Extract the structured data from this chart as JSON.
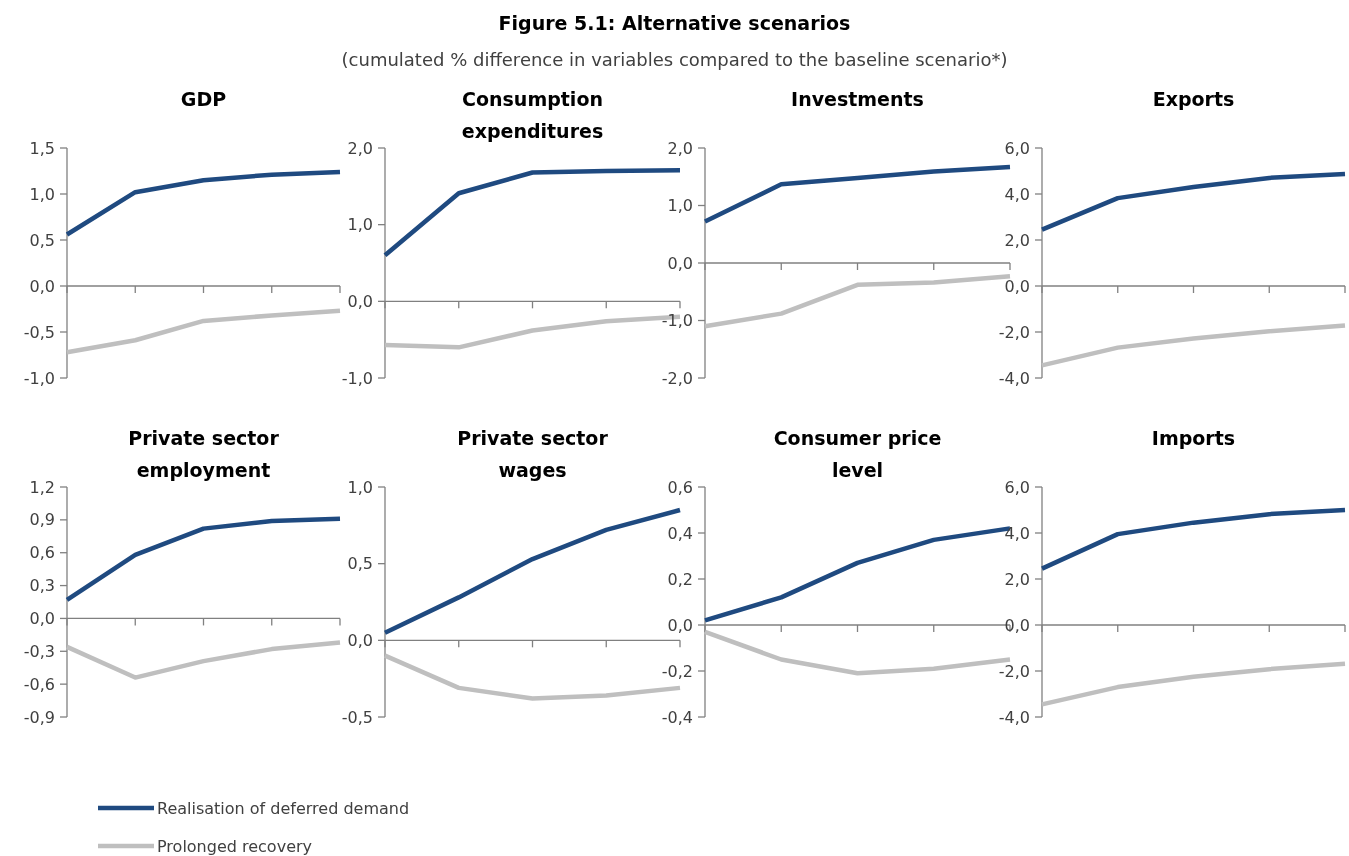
{
  "chart_data": [
    {
      "type": "line",
      "title": "GDP",
      "annotations": [
        "Figure 5.1: Alternative scenarios",
        "(cumulated % difference in variables compared to the baseline scenario*)"
      ],
      "legend": "bottom",
      "categories": [
        null,
        null,
        null,
        null,
        null
      ],
      "ylim": [
        -1,
        1.5
      ],
      "yticks": [
        {
          "value": -1,
          "label": "-1,0"
        },
        {
          "value": -0.5,
          "label": "-0,5"
        },
        {
          "value": 0,
          "label": "0,0"
        },
        {
          "value": 0.5,
          "label": "0,5"
        },
        {
          "value": 1,
          "label": "1,0"
        },
        {
          "value": 1.5,
          "label": "1,5"
        }
      ],
      "series": [
        {
          "name": "Realisation of deferred demand",
          "color": "#1f4a80",
          "values": [
            0.56,
            1.02,
            1.15,
            1.21,
            1.24
          ]
        },
        {
          "name": "Prolonged recovery",
          "color": "#bfbfbf",
          "values": [
            -0.72,
            -0.59,
            -0.38,
            -0.32,
            -0.27
          ]
        }
      ]
    },
    {
      "type": "line",
      "title": "Consumption expenditures",
      "categories": [
        null,
        null,
        null,
        null,
        null
      ],
      "ylim": [
        -1,
        2
      ],
      "yticks": [
        {
          "value": -1,
          "label": "-1,0"
        },
        {
          "value": 0,
          "label": "0,0"
        },
        {
          "value": 1,
          "label": "1,0"
        },
        {
          "value": 2,
          "label": "2,0"
        }
      ],
      "series": [
        {
          "color": "#1f4a80",
          "values": [
            0.6,
            1.41,
            1.68,
            1.7,
            1.71
          ]
        },
        {
          "color": "#bfbfbf",
          "values": [
            -0.57,
            -0.6,
            -0.38,
            -0.26,
            -0.2
          ]
        }
      ]
    },
    {
      "type": "line",
      "title": "Investments",
      "categories": [
        null,
        null,
        null,
        null,
        null
      ],
      "ylim": [
        -2,
        2
      ],
      "yticks": [
        {
          "value": -2,
          "label": "-2,0"
        },
        {
          "value": -1,
          "label": "-1,0"
        },
        {
          "value": 0,
          "label": "0,0"
        },
        {
          "value": 1,
          "label": "1,0"
        },
        {
          "value": 2,
          "label": "2,0"
        }
      ],
      "series": [
        {
          "color": "#1f4a80",
          "values": [
            0.72,
            1.37,
            1.48,
            1.59,
            1.67
          ]
        },
        {
          "color": "#bfbfbf",
          "values": [
            -1.1,
            -0.88,
            -0.38,
            -0.34,
            -0.23
          ]
        }
      ]
    },
    {
      "type": "line",
      "title": "Exports",
      "categories": [
        null,
        null,
        null,
        null,
        null
      ],
      "ylim": [
        -4,
        6
      ],
      "yticks": [
        {
          "value": -4,
          "label": "-4,0"
        },
        {
          "value": -2,
          "label": "-2,0"
        },
        {
          "value": 0,
          "label": "0,0"
        },
        {
          "value": 2,
          "label": "2,0"
        },
        {
          "value": 4,
          "label": "4,0"
        },
        {
          "value": 6,
          "label": "6,0"
        }
      ],
      "series": [
        {
          "color": "#1f4a80",
          "values": [
            2.45,
            3.82,
            4.3,
            4.7,
            4.87
          ]
        },
        {
          "color": "#bfbfbf",
          "values": [
            -3.45,
            -2.68,
            -2.28,
            -1.97,
            -1.72
          ]
        }
      ]
    },
    {
      "type": "line",
      "title": "Private sector employment",
      "categories": [
        null,
        null,
        null,
        null,
        null
      ],
      "ylim": [
        -0.9,
        1.2
      ],
      "yticks": [
        {
          "value": -0.9,
          "label": "-0,9"
        },
        {
          "value": -0.6,
          "label": "-0,6"
        },
        {
          "value": -0.3,
          "label": "-0,3"
        },
        {
          "value": 0,
          "label": "0,0"
        },
        {
          "value": 0.3,
          "label": "0,3"
        },
        {
          "value": 0.6,
          "label": "0,6"
        },
        {
          "value": 0.9,
          "label": "0,9"
        },
        {
          "value": 1.2,
          "label": "1,2"
        }
      ],
      "series": [
        {
          "color": "#1f4a80",
          "values": [
            0.17,
            0.58,
            0.82,
            0.89,
            0.91
          ]
        },
        {
          "color": "#bfbfbf",
          "values": [
            -0.26,
            -0.54,
            -0.39,
            -0.28,
            -0.22
          ]
        }
      ]
    },
    {
      "type": "line",
      "title": "Private sector wages",
      "categories": [
        null,
        null,
        null,
        null,
        null
      ],
      "ylim": [
        -0.5,
        1
      ],
      "yticks": [
        {
          "value": -0.5,
          "label": "-0,5"
        },
        {
          "value": 0,
          "label": "0,0"
        },
        {
          "value": 0.5,
          "label": "0,5"
        },
        {
          "value": 1,
          "label": "1,0"
        }
      ],
      "series": [
        {
          "color": "#1f4a80",
          "values": [
            0.05,
            0.28,
            0.53,
            0.72,
            0.85
          ]
        },
        {
          "color": "#bfbfbf",
          "values": [
            -0.1,
            -0.31,
            -0.38,
            -0.36,
            -0.31
          ]
        }
      ]
    },
    {
      "type": "line",
      "title": "Consumer price level",
      "categories": [
        null,
        null,
        null,
        null,
        null
      ],
      "ylim": [
        -0.4,
        0.6
      ],
      "yticks": [
        {
          "value": -0.4,
          "label": "-0,4"
        },
        {
          "value": -0.2,
          "label": "-0,2"
        },
        {
          "value": 0,
          "label": "0,0"
        },
        {
          "value": 0.2,
          "label": "0,2"
        },
        {
          "value": 0.4,
          "label": "0,4"
        },
        {
          "value": 0.6,
          "label": "0,6"
        }
      ],
      "series": [
        {
          "color": "#1f4a80",
          "values": [
            0.02,
            0.12,
            0.27,
            0.37,
            0.42
          ]
        },
        {
          "color": "#bfbfbf",
          "values": [
            -0.03,
            -0.15,
            -0.21,
            -0.19,
            -0.15
          ]
        }
      ]
    },
    {
      "type": "line",
      "title": "Imports",
      "categories": [
        null,
        null,
        null,
        null,
        null
      ],
      "ylim": [
        -4,
        6
      ],
      "yticks": [
        {
          "value": -4,
          "label": "-4,0"
        },
        {
          "value": -2,
          "label": "-2,0"
        },
        {
          "value": 0,
          "label": "0,0"
        },
        {
          "value": 2,
          "label": "2,0"
        },
        {
          "value": 4,
          "label": "4,0"
        },
        {
          "value": 6,
          "label": "6,0"
        }
      ],
      "series": [
        {
          "color": "#1f4a80",
          "values": [
            2.45,
            3.95,
            4.45,
            4.82,
            5.0
          ]
        },
        {
          "color": "#bfbfbf",
          "values": [
            -3.45,
            -2.7,
            -2.25,
            -1.92,
            -1.68
          ]
        }
      ]
    }
  ]
}
